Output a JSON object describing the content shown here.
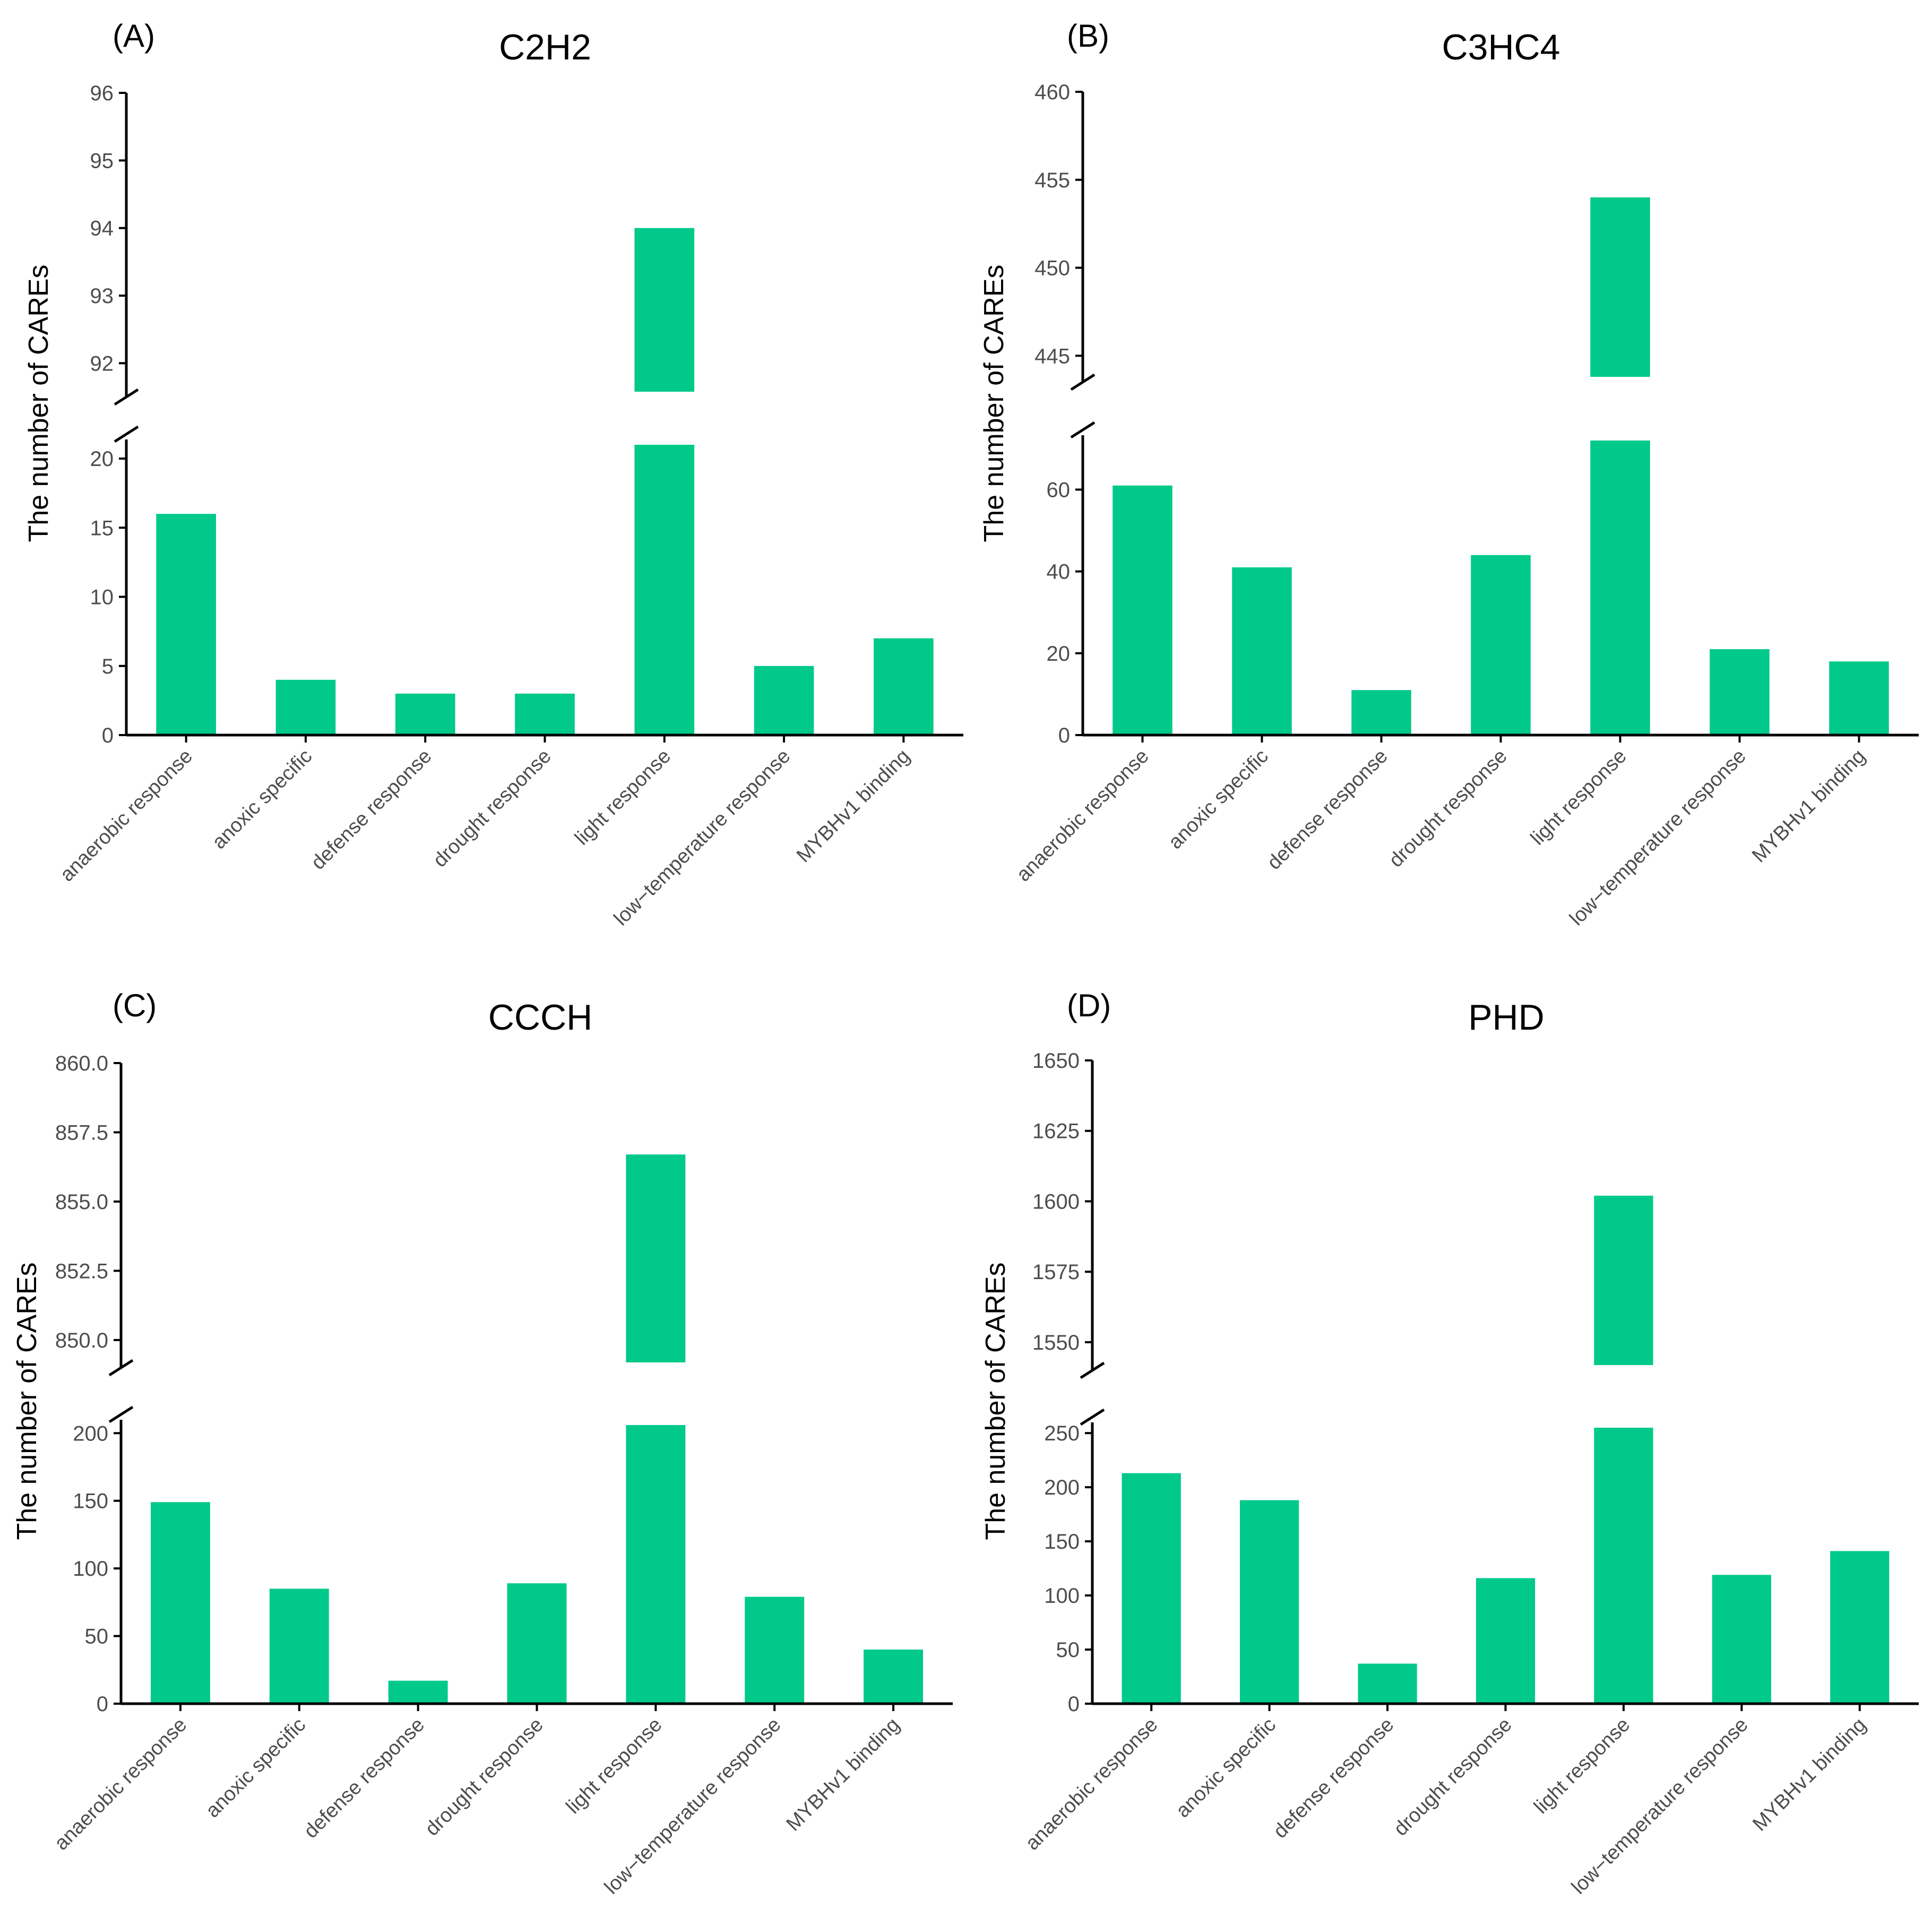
{
  "figure": {
    "y_axis_label": "The number of CAREs",
    "bar_color": "#00C98A"
  },
  "chart_data": [
    {
      "id": "A",
      "panel_label": "(A)",
      "title": "C2H2",
      "type": "bar",
      "y_axis_break": true,
      "ylabel": "The number of CAREs",
      "categories": [
        "anaerobic response",
        "anoxic specific",
        "defense response",
        "drought response",
        "light response",
        "low−temperature response",
        "MYBHv1 binding"
      ],
      "values": [
        16,
        4,
        3,
        3,
        94,
        5,
        7
      ],
      "lower_segment": {
        "ylim": [
          0,
          21
        ],
        "ticks": [
          0,
          5,
          10,
          15,
          20
        ],
        "tick_labels": [
          "0",
          "5",
          "10",
          "15",
          "20"
        ]
      },
      "upper_segment": {
        "ylim": [
          91.5,
          96
        ],
        "ticks": [
          92,
          93,
          94,
          95,
          96
        ],
        "tick_labels": [
          "92",
          "93",
          "94",
          "95",
          "96"
        ]
      }
    },
    {
      "id": "B",
      "panel_label": "(B)",
      "title": "C3HC4",
      "type": "bar",
      "y_axis_break": true,
      "ylabel": "The number of CAREs",
      "categories": [
        "anaerobic response",
        "anoxic specific",
        "defense response",
        "drought response",
        "light response",
        "low−temperature response",
        "MYBHv1 binding"
      ],
      "values": [
        61,
        41,
        11,
        44,
        454,
        21,
        18
      ],
      "lower_segment": {
        "ylim": [
          0,
          72
        ],
        "ticks": [
          0,
          20,
          40,
          60
        ],
        "tick_labels": [
          "0",
          "20",
          "40",
          "60"
        ]
      },
      "upper_segment": {
        "ylim": [
          443.5,
          460
        ],
        "ticks": [
          445,
          450,
          455,
          460
        ],
        "tick_labels": [
          "445",
          "450",
          "455",
          "460"
        ]
      }
    },
    {
      "id": "C",
      "panel_label": "(C)",
      "title": "CCCH",
      "type": "bar",
      "y_axis_break": true,
      "ylabel": "The number of CAREs",
      "categories": [
        "anaerobic response",
        "anoxic specific",
        "defense response",
        "drought response",
        "light response",
        "low−temperature response",
        "MYBHv1 binding"
      ],
      "values": [
        149,
        85,
        17,
        89,
        856.7,
        79,
        40
      ],
      "lower_segment": {
        "ylim": [
          0,
          206
        ],
        "ticks": [
          0,
          50,
          100,
          150,
          200
        ],
        "tick_labels": [
          "0",
          "50",
          "100",
          "150",
          "200"
        ]
      },
      "upper_segment": {
        "ylim": [
          849,
          860
        ],
        "ticks": [
          850,
          852.5,
          855,
          857.5,
          860
        ],
        "tick_labels": [
          "850.0",
          "852.5",
          "855.0",
          "857.5",
          "860.0"
        ]
      }
    },
    {
      "id": "D",
      "panel_label": "(D)",
      "title": "PHD",
      "type": "bar",
      "y_axis_break": true,
      "ylabel": "The number of CAREs",
      "categories": [
        "anaerobic response",
        "anoxic specific",
        "defense response",
        "drought response",
        "light response",
        "low−temperature response",
        "MYBHv1 binding"
      ],
      "values": [
        213,
        188,
        37,
        116,
        1602,
        119,
        141
      ],
      "lower_segment": {
        "ylim": [
          0,
          255
        ],
        "ticks": [
          0,
          50,
          100,
          150,
          200,
          250
        ],
        "tick_labels": [
          "0",
          "50",
          "100",
          "150",
          "200",
          "250"
        ]
      },
      "upper_segment": {
        "ylim": [
          1540,
          1650
        ],
        "ticks": [
          1550,
          1575,
          1600,
          1625,
          1650
        ],
        "tick_labels": [
          "1550",
          "1575",
          "1600",
          "1625",
          "1650"
        ]
      }
    }
  ]
}
